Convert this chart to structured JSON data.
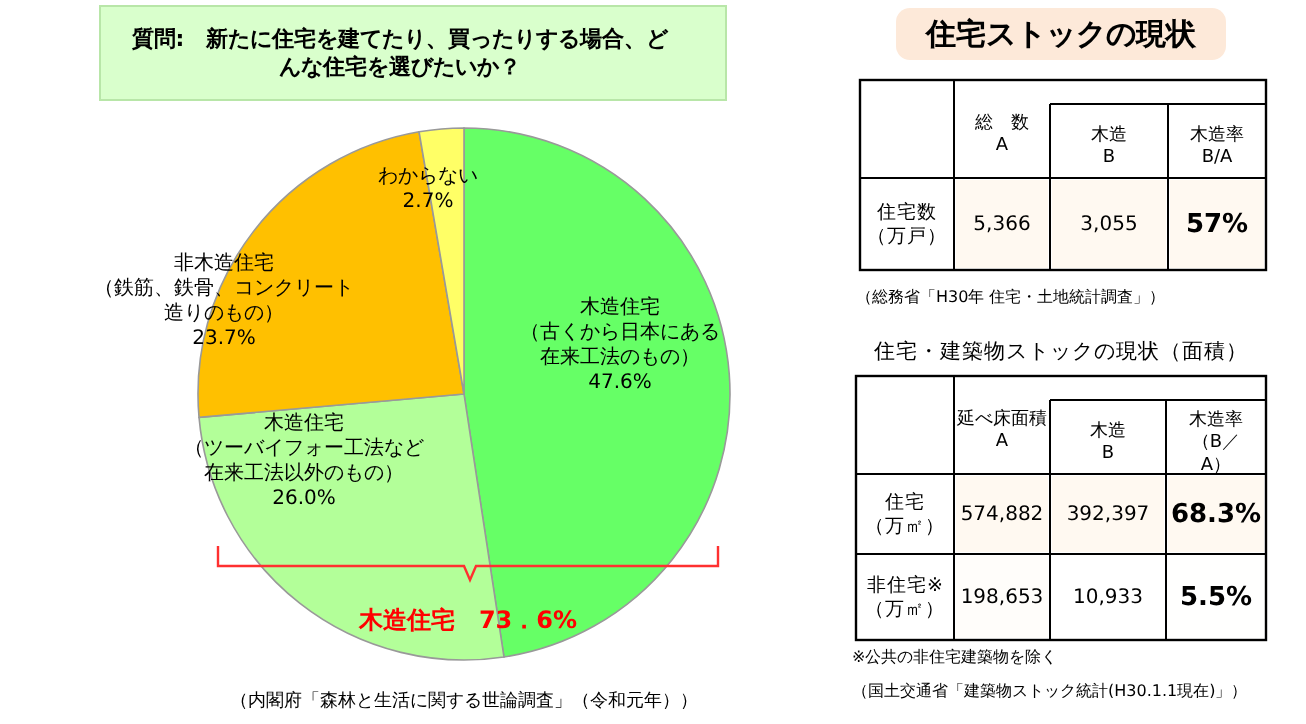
{
  "chart_data": [
    {
      "type": "pie",
      "title": "質問:　新たに住宅を建てたり、買ったりする場合、どんな住宅を選びたいか？",
      "categories": [
        "木造住宅（古くから日本にある在来工法のもの）",
        "木造住宅（ツーバイフォー工法など在来工法以外のもの）",
        "非木造住宅（鉄筋、鉄骨、コンクリート造りのもの）",
        "わからない"
      ],
      "values": [
        47.6,
        26.0,
        23.7,
        2.7
      ],
      "value_labels": [
        "47.6%",
        "26.0%",
        "23.7%",
        "2.7%"
      ],
      "colors": [
        "#66ff66",
        "#b3ff99",
        "#ffc000",
        "#ffff66"
      ],
      "annotations": [
        "木造住宅　73．6%",
        "（内閣府「森林と生活に関する世論調査」（令和元年））"
      ]
    },
    {
      "type": "heatmap",
      "title": "住宅ストックの現状",
      "categories": [
        "総　数A",
        "木造B",
        "木造率B/A"
      ],
      "y_categories": [
        "住宅数（万戸）"
      ],
      "cells": [
        [
          5366,
          3055,
          57
        ]
      ],
      "cell_labels": [
        [
          "5,366",
          "3,055",
          "57%"
        ]
      ],
      "annotations": [
        "（総務省「H30年 住宅・土地統計調査」）"
      ]
    },
    {
      "type": "heatmap",
      "title": "住宅・建築物ストックの現状（面積）",
      "categories": [
        "延べ床面積A",
        "木造B",
        "木造率（B／A）"
      ],
      "y_categories": [
        "住宅（万㎡）",
        "非住宅※（万㎡）"
      ],
      "cells": [
        [
          574882,
          392397,
          68.3
        ],
        [
          198653,
          10933,
          5.5
        ]
      ],
      "cell_labels": [
        [
          "574,882",
          "392,397",
          "68.3%"
        ],
        [
          "198,653",
          "10,933",
          "5.5%"
        ]
      ],
      "annotations": [
        "※公共の非住宅建築物を除く",
        "（国土交通省「建築物ストック統計(H30.1.1現在)」）"
      ]
    }
  ]
}
